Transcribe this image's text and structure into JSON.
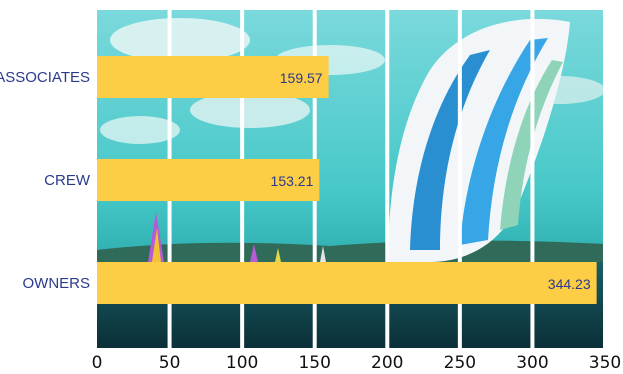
{
  "chart_data": {
    "type": "bar",
    "orientation": "horizontal",
    "title": "",
    "categories": [
      "ASSOCIATES",
      "CREW",
      "OWNERS"
    ],
    "values": [
      159.57,
      153.21,
      344.23
    ],
    "value_labels": [
      "159.57",
      "153.21",
      "344.23"
    ],
    "xlim": [
      0,
      350
    ],
    "x_ticks": [
      0,
      50,
      100,
      150,
      200,
      250,
      300,
      350
    ],
    "x_tick_labels": [
      "0",
      "50",
      "100",
      "150",
      "200",
      "250",
      "300",
      "350"
    ],
    "grid": "vertical",
    "background": "sailing photograph (spinnaker sail, sea and sky)"
  },
  "colors": {
    "bar": "#fccd45",
    "category_text": "#2a3a8c",
    "value_text": "#2a3a8c",
    "gridline": "#ffffff",
    "title": "#ff1a1a",
    "sky": "#41c9c8",
    "sea": "#10484f",
    "sail_blue": "#2a8fd1"
  }
}
